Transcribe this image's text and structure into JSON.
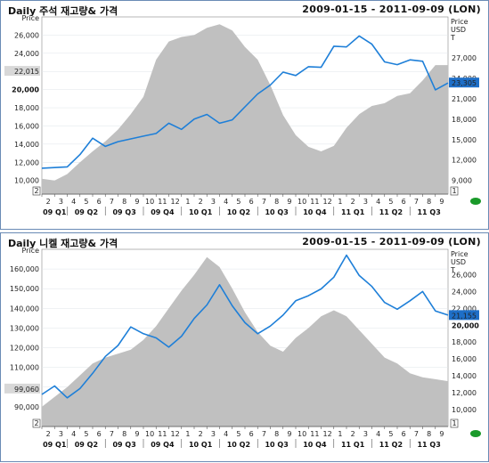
{
  "chart_data": [
    {
      "type": "area",
      "title": "Daily 주석 재고량& 가격",
      "date_range": "2009-01-15 - 2011-09-09 (LON)",
      "left_axis": {
        "label": "Price",
        "ylim": [
          8500,
          28000
        ],
        "ticks": [
          10000,
          12000,
          14000,
          16000,
          18000,
          20000,
          22000,
          24000,
          26000
        ],
        "tick_labels": [
          "10,000",
          "12,000",
          "14,000",
          "16,000",
          "18,000",
          "20,000",
          "22,000",
          "24,000",
          "26,000"
        ],
        "emphasized": "20,000",
        "current_marker": "22,015"
      },
      "right_axis": {
        "label": "Price\nUSD\nT",
        "ylim": [
          7000,
          33000
        ],
        "ticks": [
          9000,
          12000,
          15000,
          18000,
          21000,
          24000,
          27000
        ],
        "tick_labels": [
          "9,000",
          "12,000",
          "15,000",
          "18,000",
          "21,000",
          "24,000",
          "27,000"
        ],
        "current_marker": "23,305"
      },
      "x_month_labels": [
        "2",
        "3",
        "4",
        "5",
        "6",
        "7",
        "8",
        "9",
        "10",
        "11",
        "12",
        "1",
        "2",
        "3",
        "4",
        "5",
        "6",
        "7",
        "8",
        "9",
        "10",
        "11",
        "12",
        "1",
        "2",
        "3",
        "4",
        "5",
        "6",
        "7",
        "8",
        "9"
      ],
      "x_quarter_labels": [
        "09 Q1",
        "09 Q2",
        "09 Q3",
        "09 Q4",
        "10 Q1",
        "10 Q2",
        "10 Q3",
        "10 Q4",
        "11 Q1",
        "11 Q2",
        "11 Q3"
      ],
      "corner_markers": [
        "2",
        "1"
      ],
      "series": [
        {
          "kind": "area",
          "color": "#c0c0c0",
          "x": [
            0,
            1,
            2,
            3,
            4,
            5,
            6,
            7,
            8,
            9,
            10,
            11,
            12,
            13,
            14,
            15,
            16,
            17,
            18,
            19,
            20,
            21,
            22,
            23,
            24,
            25,
            26,
            27,
            28,
            29,
            30,
            31,
            32
          ],
          "values": [
            10200,
            10000,
            10700,
            12000,
            13200,
            14300,
            15600,
            17300,
            19200,
            23300,
            25300,
            25800,
            26000,
            26800,
            27200,
            26500,
            24700,
            23300,
            20500,
            17200,
            15000,
            13700,
            13200,
            13800,
            15800,
            17300,
            18200,
            18500,
            19300,
            19600,
            21000,
            22700,
            22700
          ]
        },
        {
          "kind": "line",
          "color": "#1e7fd8",
          "x": [
            0,
            1,
            2,
            3,
            4,
            5,
            6,
            7,
            8,
            9,
            10,
            11,
            12,
            13,
            14,
            15,
            16,
            17,
            18,
            19,
            20,
            21,
            22,
            23,
            24,
            25,
            26,
            27,
            28,
            29,
            30,
            31,
            32
          ],
          "values": [
            10800,
            10900,
            11000,
            12800,
            15200,
            14000,
            14700,
            15100,
            15500,
            15900,
            17400,
            16500,
            18000,
            18700,
            17400,
            17900,
            19800,
            21700,
            23000,
            24900,
            24400,
            25700,
            25600,
            28700,
            28600,
            30200,
            29000,
            26400,
            26000,
            26700,
            26500,
            22300,
            23300
          ]
        }
      ]
    },
    {
      "type": "area",
      "title": "Daily 니켈 재고량& 가격",
      "date_range": "2009-01-15 - 2011-09-09 (LON)",
      "left_axis": {
        "label": "Price",
        "ylim": [
          80000,
          170000
        ],
        "ticks": [
          90000,
          100000,
          110000,
          120000,
          130000,
          140000,
          150000,
          160000
        ],
        "tick_labels": [
          "90,000",
          "100,000",
          "110,000",
          "120,000",
          "130,000",
          "140,000",
          "150,000",
          "160,000"
        ],
        "emphasized": "100,000",
        "current_marker": "99,060"
      },
      "right_axis": {
        "label": "Price\nUSD\nT",
        "ylim": [
          8000,
          29000
        ],
        "ticks": [
          10000,
          12000,
          14000,
          16000,
          18000,
          20000,
          22000,
          24000,
          26000
        ],
        "tick_labels": [
          "10,000",
          "12,000",
          "14,000",
          "16,000",
          "18,000",
          "20,000",
          "22,000",
          "24,000",
          "26,000"
        ],
        "emphasized": "20,000",
        "current_marker": "21,155"
      },
      "x_month_labels": [
        "2",
        "3",
        "4",
        "5",
        "6",
        "7",
        "8",
        "9",
        "10",
        "11",
        "12",
        "1",
        "2",
        "3",
        "4",
        "5",
        "6",
        "7",
        "8",
        "9",
        "10",
        "11",
        "12",
        "1",
        "2",
        "3",
        "4",
        "5",
        "6",
        "7",
        "8",
        "9"
      ],
      "x_quarter_labels": [
        "09 Q1",
        "09 Q2",
        "09 Q3",
        "09 Q4",
        "10 Q1",
        "10 Q2",
        "10 Q3",
        "10 Q4",
        "11 Q1",
        "11 Q2",
        "11 Q3"
      ],
      "corner_markers": [
        "2",
        "1"
      ],
      "series": [
        {
          "kind": "area",
          "color": "#c0c0c0",
          "x": [
            0,
            1,
            2,
            3,
            4,
            5,
            6,
            7,
            8,
            9,
            10,
            11,
            12,
            13,
            14,
            15,
            16,
            17,
            18,
            19,
            20,
            21,
            22,
            23,
            24,
            25,
            26,
            27,
            28,
            29,
            30,
            31,
            32
          ],
          "values": [
            90000,
            95000,
            100000,
            106000,
            112000,
            115000,
            117000,
            119000,
            124000,
            131000,
            140000,
            149000,
            157000,
            166000,
            161000,
            150000,
            138000,
            128000,
            121000,
            118000,
            125000,
            130000,
            136000,
            139000,
            136000,
            129000,
            122000,
            115000,
            112000,
            107000,
            105000,
            104000,
            103000
          ]
        },
        {
          "kind": "line",
          "color": "#1e7fd8",
          "x": [
            0,
            1,
            2,
            3,
            4,
            5,
            6,
            7,
            8,
            9,
            10,
            11,
            12,
            13,
            14,
            15,
            16,
            17,
            18,
            19,
            20,
            21,
            22,
            23,
            24,
            25,
            26,
            27,
            28,
            29,
            30,
            31,
            32
          ],
          "values": [
            11800,
            12800,
            11400,
            12500,
            14300,
            16300,
            17600,
            19800,
            19000,
            18500,
            17400,
            18700,
            20800,
            22400,
            24800,
            22300,
            20300,
            19000,
            19900,
            21200,
            22900,
            23500,
            24300,
            25700,
            28300,
            25900,
            24600,
            22700,
            21900,
            22900,
            24000,
            21700,
            21200
          ]
        }
      ]
    }
  ]
}
